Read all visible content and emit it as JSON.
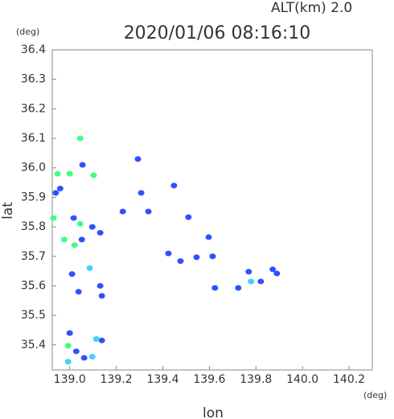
{
  "chart_data": {
    "type": "scatter",
    "top_label": "ALT(km)  2.0",
    "title": "2020/01/06 08:16:10",
    "y_unit": "(deg)",
    "x_unit": "(deg)",
    "y_label": "lat",
    "x_label": "lon",
    "xlim": [
      138.925,
      140.3
    ],
    "ylim": [
      35.315,
      36.4
    ],
    "xticks": [
      {
        "value": 139,
        "label": "139.0"
      },
      139.2,
      139.4,
      139.6,
      139.8,
      {
        "value": 140,
        "label": "140.0"
      },
      140.2
    ],
    "yticks": [
      35.4,
      35.5,
      35.6,
      35.7,
      35.8,
      35.9,
      {
        "value": 36,
        "label": "36.0"
      },
      36.1,
      36.2,
      36.3,
      36.4
    ],
    "series": [
      {
        "color": "#3050ff",
        "x": [
          139.055,
          138.959,
          138.94,
          139.017,
          139.097,
          139.131,
          139.052,
          139.01,
          139.038,
          139.131,
          139.138,
          139.0,
          139.028,
          139.062,
          139.138,
          139.293,
          139.307,
          139.228,
          139.338,
          139.448,
          139.51,
          139.424,
          139.597,
          139.476,
          139.614,
          139.624,
          139.724,
          139.769,
          139.821,
          139.872,
          139.89,
          139.545
        ],
        "values": [
          36.01,
          35.93,
          35.915,
          35.83,
          35.8,
          35.78,
          35.757,
          35.64,
          35.58,
          35.6,
          35.566,
          35.44,
          35.378,
          35.356,
          35.415,
          36.03,
          35.915,
          35.852,
          35.852,
          35.94,
          35.833,
          35.71,
          35.765,
          35.684,
          35.7,
          35.593,
          35.593,
          35.648,
          35.615,
          35.656,
          35.642,
          35.697
        ]
      },
      {
        "color": "#40ff80",
        "x": [
          139.045,
          138.948,
          139.0,
          139.103,
          138.93,
          139.045,
          138.976,
          139.021,
          138.993
        ],
        "values": [
          36.1,
          35.98,
          35.98,
          35.975,
          35.83,
          35.81,
          35.757,
          35.738,
          35.397
        ]
      },
      {
        "color": "#40d0ff",
        "x": [
          139.086,
          138.993,
          139.097,
          139.114,
          139.779
        ],
        "values": [
          35.66,
          35.343,
          35.36,
          35.42,
          35.615
        ]
      }
    ]
  }
}
